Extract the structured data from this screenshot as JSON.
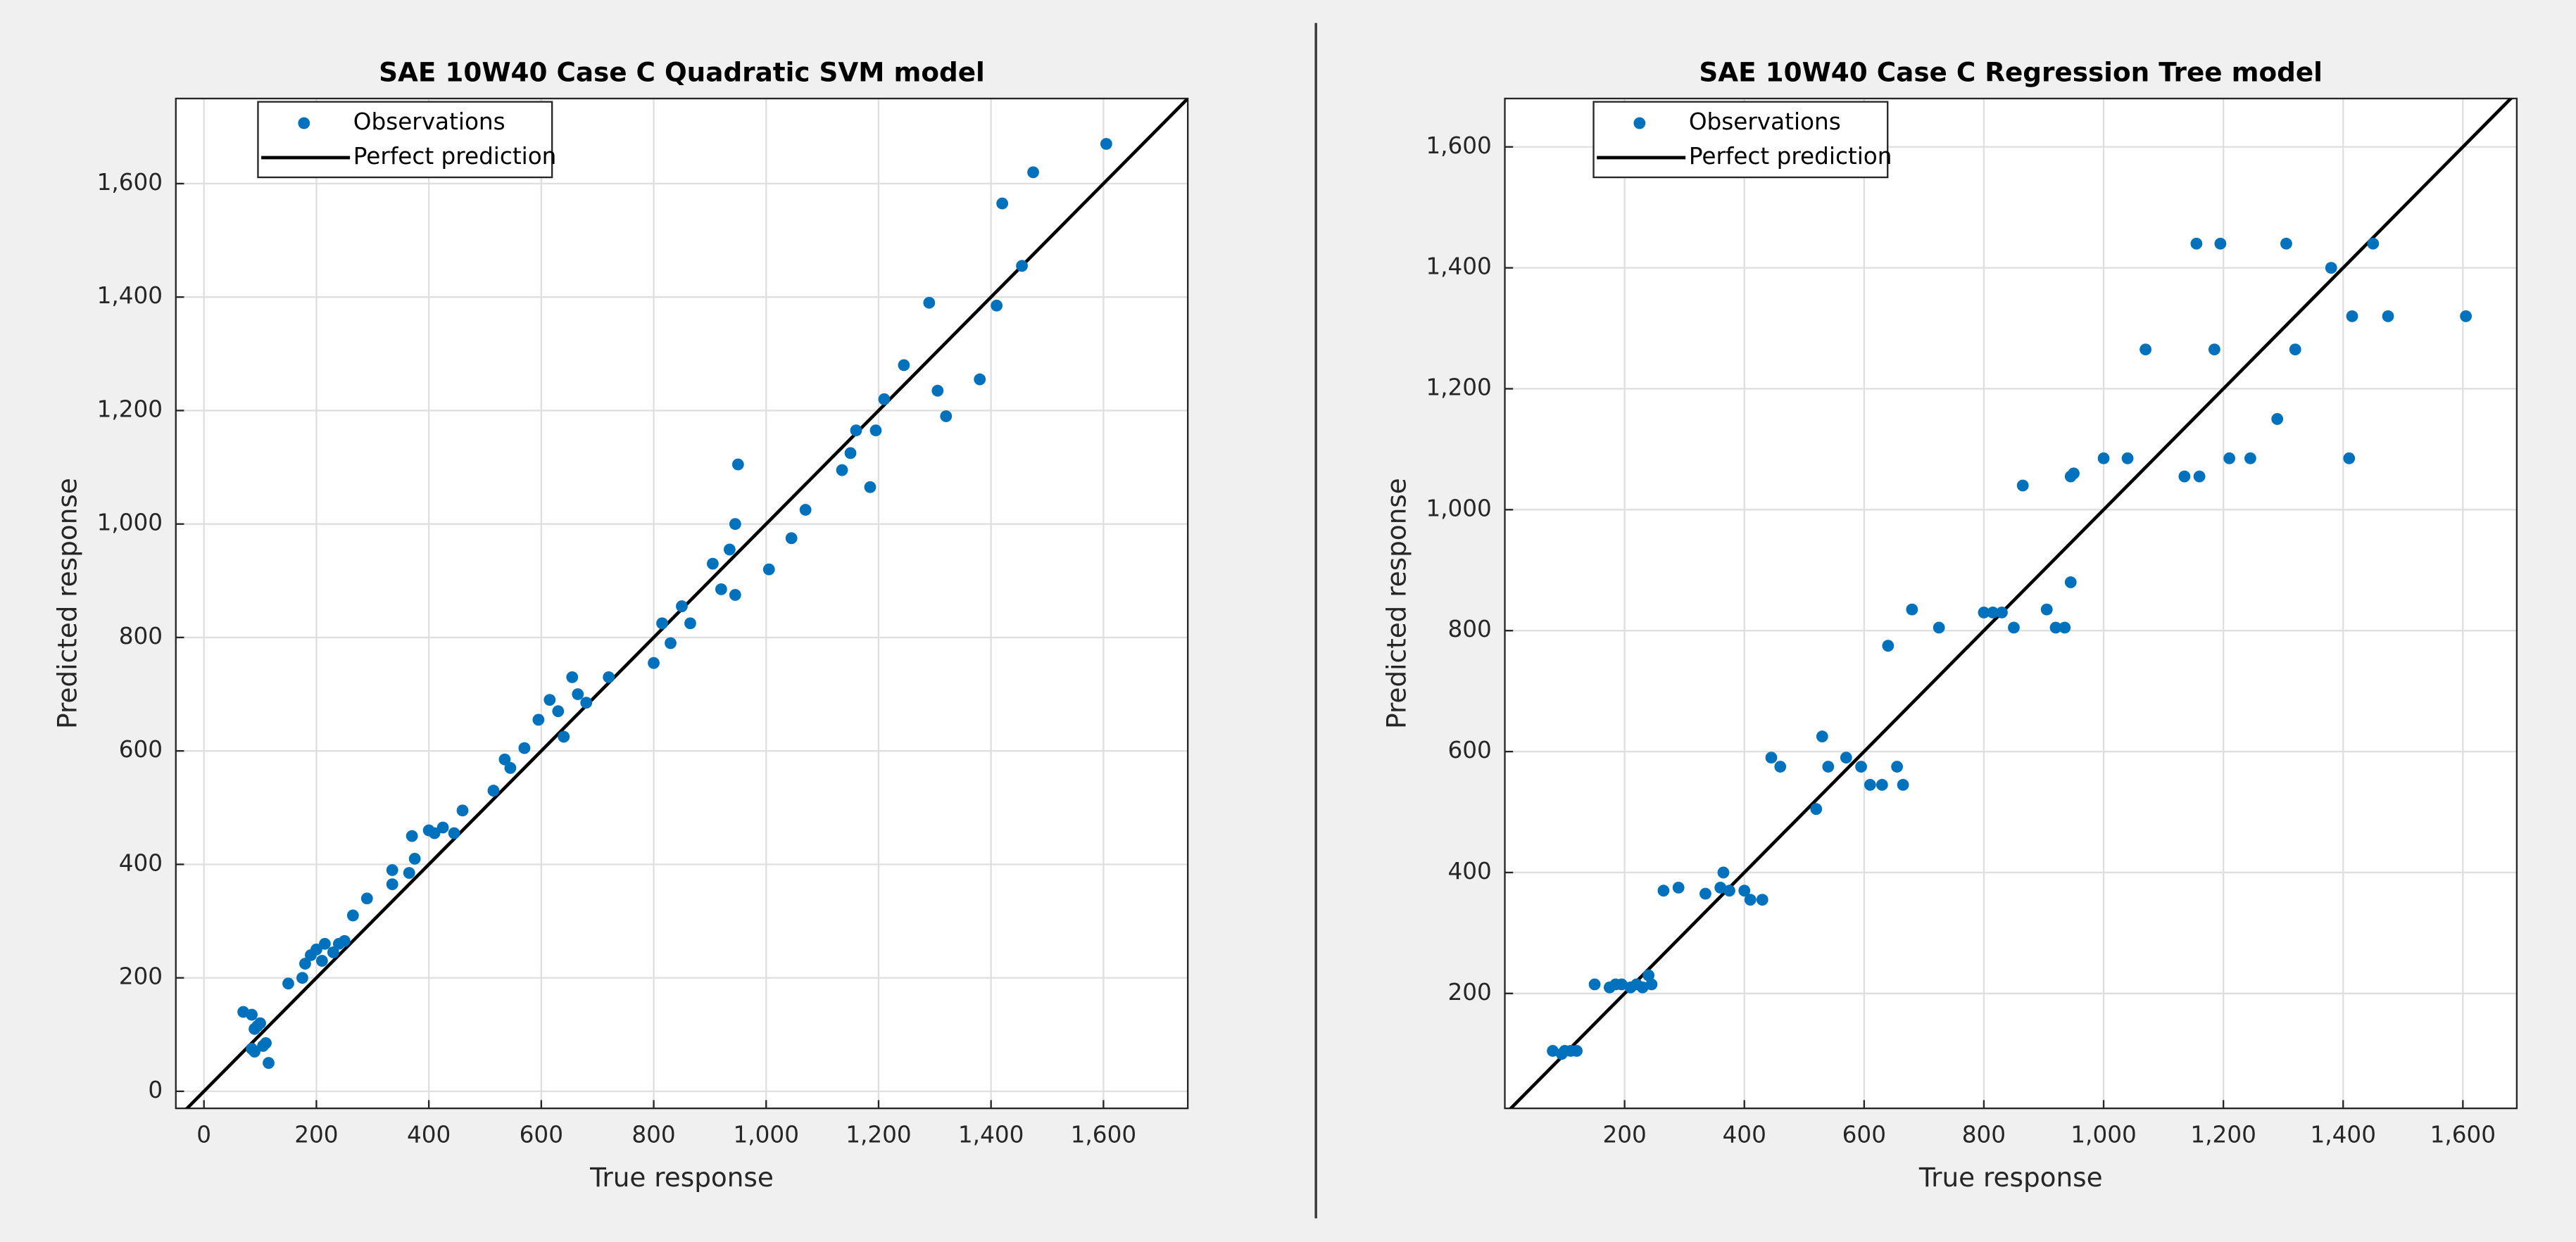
{
  "chart_data": [
    {
      "type": "scatter",
      "title": "SAE 10W40 Case C Quadratic SVM model",
      "x_label": "True response",
      "y_label": "Predicted response",
      "xlim": [
        -50,
        1750
      ],
      "ylim": [
        -30,
        1750
      ],
      "xticks": [
        0,
        200,
        400,
        600,
        800,
        {
          "value": 1000,
          "label": "1,000"
        },
        {
          "value": 1200,
          "label": "1,200"
        },
        {
          "value": 1400,
          "label": "1,400"
        },
        {
          "value": 1600,
          "label": "1,600"
        }
      ],
      "yticks": [
        0,
        200,
        400,
        600,
        800,
        {
          "value": 1000,
          "label": "1,000"
        },
        {
          "value": 1200,
          "label": "1,200"
        },
        {
          "value": 1400,
          "label": "1,400"
        },
        {
          "value": 1600,
          "label": "1,600"
        }
      ],
      "grid": true,
      "series": [
        {
          "name": "Observations",
          "color": "#0072bd",
          "x": [
            70,
            85,
            90,
            85,
            95,
            100,
            105,
            110,
            115,
            90,
            150,
            175,
            180,
            190,
            200,
            210,
            215,
            230,
            240,
            250,
            265,
            290,
            335,
            335,
            365,
            370,
            375,
            400,
            410,
            425,
            445,
            460,
            515,
            535,
            545,
            570,
            595,
            615,
            630,
            640,
            655,
            665,
            680,
            720,
            800,
            815,
            830,
            850,
            865,
            905,
            920,
            935,
            945,
            945,
            950,
            1005,
            1045,
            1070,
            1135,
            1150,
            1160,
            1185,
            1195,
            1210,
            1245,
            1290,
            1305,
            1320,
            1380,
            1410,
            1420,
            1455,
            1475,
            1605
          ],
          "values": [
            140,
            75,
            70,
            135,
            115,
            120,
            80,
            85,
            50,
            110,
            190,
            200,
            225,
            240,
            250,
            230,
            260,
            245,
            260,
            265,
            310,
            340,
            365,
            390,
            385,
            450,
            410,
            460,
            455,
            465,
            455,
            495,
            530,
            585,
            570,
            605,
            655,
            690,
            670,
            625,
            730,
            700,
            685,
            730,
            755,
            825,
            790,
            855,
            825,
            930,
            885,
            955,
            875,
            1000,
            1105,
            920,
            975,
            1025,
            1095,
            1125,
            1165,
            1065,
            1165,
            1220,
            1280,
            1390,
            1235,
            1190,
            1255,
            1385,
            1565,
            1455,
            1620,
            1670
          ]
        }
      ],
      "reference_line": {
        "name": "Perfect prediction",
        "color": "#000000"
      }
    },
    {
      "type": "scatter",
      "title": "SAE 10W40 Case C Regression Tree model",
      "x_label": "True response",
      "y_label": "Predicted response",
      "xlim": [
        0,
        1690
      ],
      "ylim": [
        10,
        1680
      ],
      "xticks": [
        200,
        400,
        600,
        800,
        {
          "value": 1000,
          "label": "1,000"
        },
        {
          "value": 1200,
          "label": "1,200"
        },
        {
          "value": 1400,
          "label": "1,400"
        },
        {
          "value": 1600,
          "label": "1,600"
        }
      ],
      "yticks": [
        200,
        400,
        600,
        800,
        {
          "value": 1000,
          "label": "1,000"
        },
        {
          "value": 1200,
          "label": "1,200"
        },
        {
          "value": 1400,
          "label": "1,400"
        },
        {
          "value": 1600,
          "label": "1,600"
        }
      ],
      "grid": true,
      "series": [
        {
          "name": "Observations",
          "color": "#0072bd",
          "x": [
            80,
            95,
            100,
            110,
            120,
            150,
            175,
            185,
            195,
            210,
            220,
            230,
            240,
            245,
            265,
            290,
            335,
            360,
            365,
            375,
            400,
            410,
            430,
            445,
            460,
            520,
            530,
            540,
            570,
            595,
            610,
            630,
            640,
            655,
            665,
            680,
            725,
            800,
            815,
            830,
            850,
            865,
            905,
            920,
            935,
            945,
            945,
            950,
            1000,
            1040,
            1070,
            1135,
            1155,
            1160,
            1185,
            1195,
            1210,
            1245,
            1290,
            1305,
            1320,
            1380,
            1410,
            1415,
            1450,
            1475,
            1605
          ],
          "values": [
            105,
            100,
            105,
            105,
            105,
            215,
            210,
            215,
            215,
            210,
            215,
            210,
            230,
            215,
            370,
            375,
            365,
            375,
            400,
            370,
            370,
            355,
            355,
            590,
            575,
            505,
            625,
            575,
            590,
            575,
            545,
            545,
            775,
            575,
            545,
            835,
            805,
            830,
            830,
            830,
            805,
            1040,
            835,
            805,
            805,
            880,
            1055,
            1060,
            1085,
            1085,
            1265,
            1055,
            1440,
            1055,
            1265,
            1440,
            1085,
            1085,
            1150,
            1440,
            1265,
            1400,
            1085,
            1320,
            1440,
            1320,
            1320
          ]
        }
      ],
      "reference_line": {
        "name": "Perfect prediction",
        "color": "#000000"
      }
    }
  ]
}
